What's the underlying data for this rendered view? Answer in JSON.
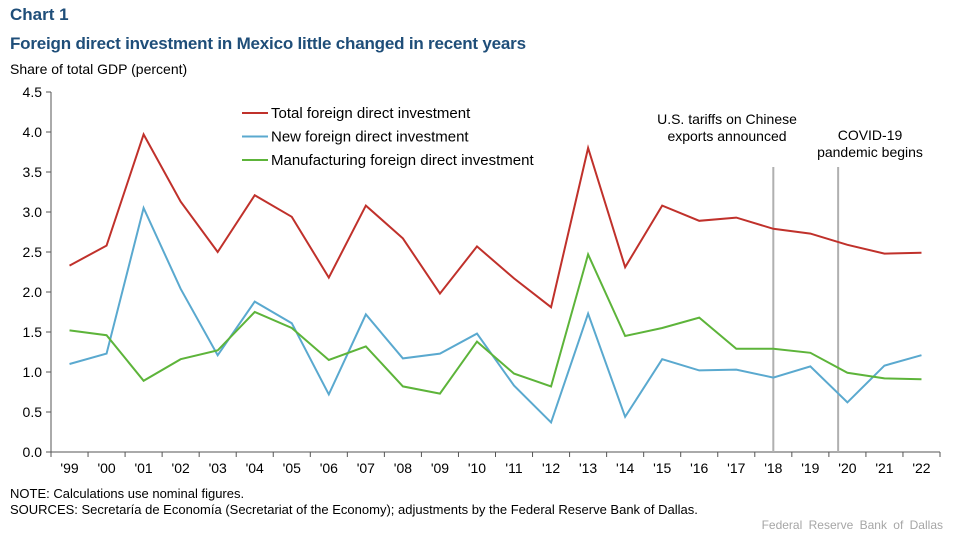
{
  "header": {
    "chart_label": "Chart 1",
    "title": "Foreign direct investment in Mexico little changed in recent years"
  },
  "footer": {
    "note": "NOTE: Calculations use nominal figures.",
    "sources": "SOURCES: Secretaría de Economía (Secretariat of the Economy); adjustments by the Federal Reserve Bank of Dallas.",
    "credit": "Federal Reserve Bank of Dallas"
  },
  "chart_data": {
    "type": "line",
    "title": "Foreign direct investment in Mexico little changed in recent years",
    "ylabel": "Share of total GDP (percent)",
    "xlabel": "",
    "ylim": [
      0,
      4.5
    ],
    "yticks": [
      "0.0",
      "0.5",
      "1.0",
      "1.5",
      "2.0",
      "2.5",
      "3.0",
      "3.5",
      "4.0",
      "4.5"
    ],
    "categories": [
      "'99",
      "'00",
      "'01",
      "'02",
      "'03",
      "'04",
      "'05",
      "'06",
      "'07",
      "'08",
      "'09",
      "'10",
      "'11",
      "'12",
      "'13",
      "'14",
      "'15",
      "'16",
      "'17",
      "'18",
      "'19",
      "'20",
      "'21",
      "'22"
    ],
    "grid": false,
    "legend": "top-center",
    "series": [
      {
        "name": "Total foreign direct investment",
        "color": "#c0312b",
        "values": [
          2.33,
          2.58,
          3.97,
          3.13,
          2.5,
          3.21,
          2.94,
          2.18,
          3.08,
          2.67,
          1.98,
          2.57,
          2.17,
          1.81,
          3.8,
          2.31,
          3.08,
          2.89,
          2.93,
          2.79,
          2.73,
          2.59,
          2.48,
          2.49
        ]
      },
      {
        "name": "New foreign direct investment",
        "color": "#5aa9cf",
        "values": [
          1.1,
          1.23,
          3.05,
          2.04,
          1.21,
          1.88,
          1.61,
          0.72,
          1.72,
          1.17,
          1.23,
          1.48,
          0.83,
          0.37,
          1.73,
          0.44,
          1.16,
          1.02,
          1.03,
          0.93,
          1.07,
          0.62,
          1.08,
          1.21
        ]
      },
      {
        "name": "Manufacturing foreign direct investment",
        "color": "#5db43a",
        "values": [
          1.52,
          1.46,
          0.89,
          1.16,
          1.27,
          1.75,
          1.55,
          1.15,
          1.32,
          0.82,
          0.73,
          1.38,
          0.98,
          0.82,
          2.47,
          1.45,
          1.55,
          1.68,
          1.29,
          1.29,
          1.24,
          0.99,
          0.92,
          0.91
        ]
      }
    ],
    "annotations": [
      {
        "x": "'18",
        "offset": 0,
        "lines": [
          "U.S. tariffs on Chinese",
          "exports announced"
        ]
      },
      {
        "x": "'20",
        "offset": -0.25,
        "lines": [
          "COVID-19",
          "pandemic begins"
        ]
      }
    ]
  }
}
